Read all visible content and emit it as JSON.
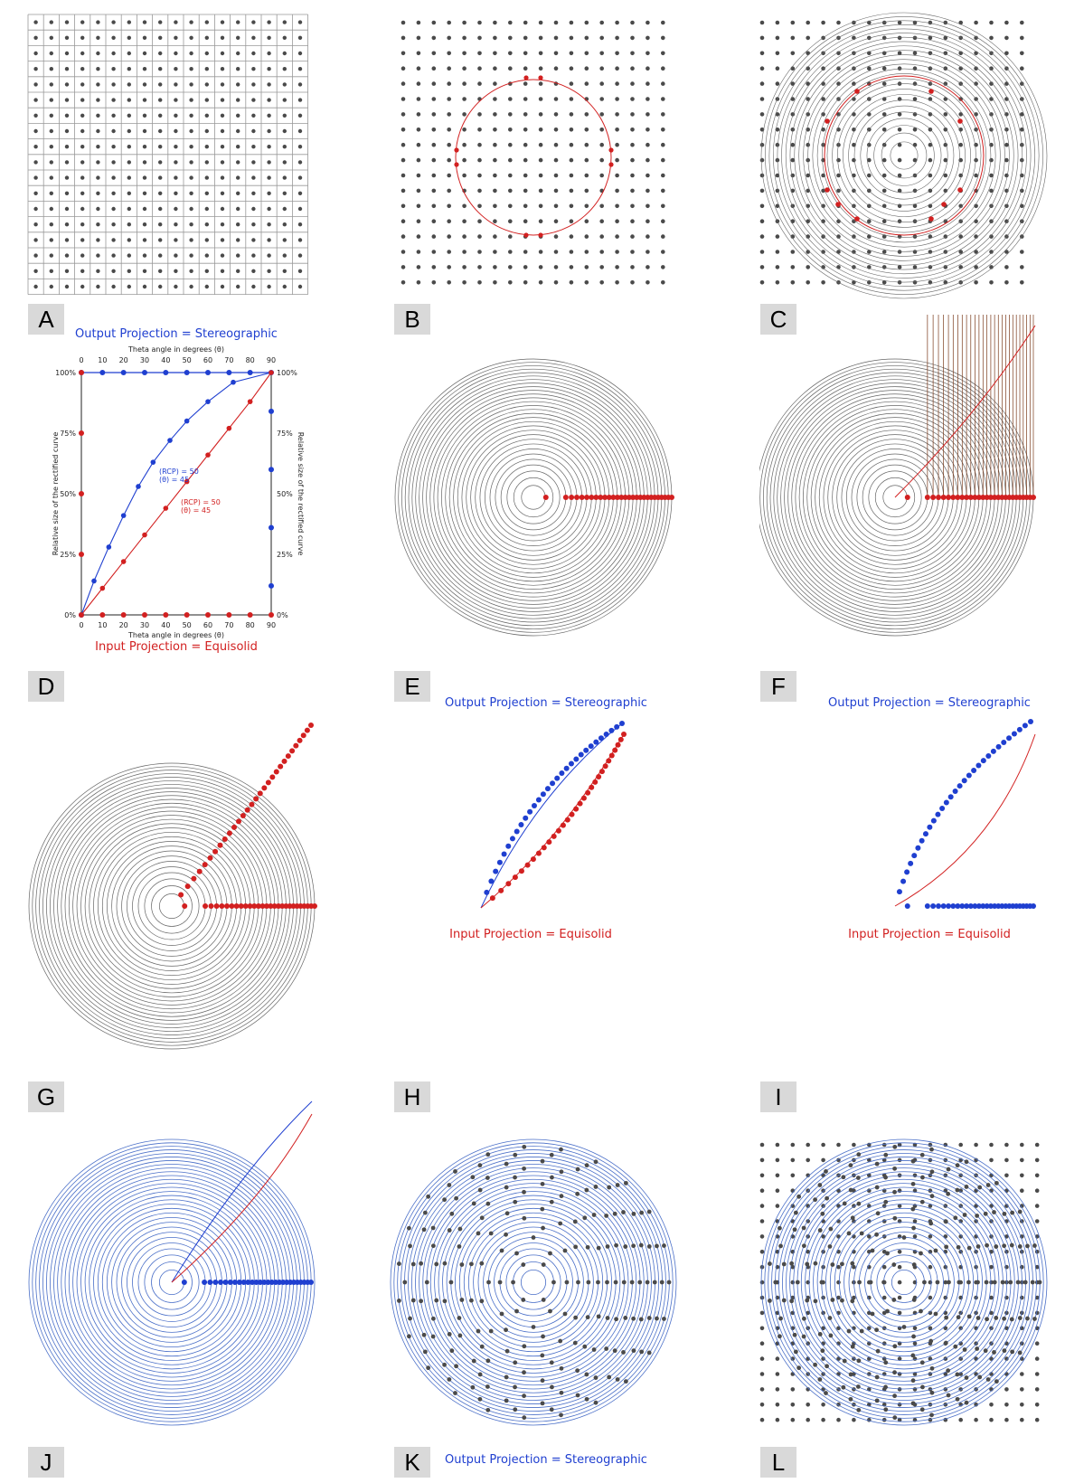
{
  "panels": {
    "A": "A",
    "B": "B",
    "C": "C",
    "D": "D",
    "E": "E",
    "F": "F",
    "G": "G",
    "H": "H",
    "I": "I",
    "J": "J",
    "K": "K",
    "L": "L"
  },
  "titles": {
    "output": "Output Projection = Stereographic",
    "input": "Input Projection = Equisolid"
  },
  "chart_data": {
    "type": "line",
    "x_axis_label": "Theta angle in degrees (θ)",
    "y_axis_label": "Relative size of the rectified curve",
    "x_ticks": [
      "0",
      "10",
      "20",
      "30",
      "40",
      "50",
      "60",
      "70",
      "80",
      "90"
    ],
    "y_ticks": [
      "0%",
      "25%",
      "50%",
      "75%",
      "100%"
    ],
    "xlim": [
      0,
      90
    ],
    "ylim": [
      0,
      100
    ],
    "series": [
      {
        "name": "Output Projection = Stereographic",
        "color": "#1f3fd0",
        "x": [
          0,
          6,
          13,
          20,
          27,
          34,
          42,
          50,
          60,
          72,
          90
        ],
        "y": [
          0,
          14,
          28,
          41,
          53,
          63,
          72,
          80,
          88,
          96,
          100
        ]
      },
      {
        "name": "Input Projection = Equisolid",
        "color": "#d22020",
        "x": [
          0,
          10,
          20,
          30,
          40,
          50,
          60,
          70,
          80,
          90
        ],
        "y": [
          0,
          11,
          22,
          33,
          44,
          55,
          66,
          77,
          88,
          100
        ]
      }
    ],
    "annotations": [
      {
        "color": "#1f3fd0",
        "line1": "(RCP) = 50",
        "line2": "(θ) = 45"
      },
      {
        "color": "#d22020",
        "line1": "(RCP) = 50",
        "line2": "(θ) = 45"
      }
    ]
  },
  "colors": {
    "dot": "#4a4a4a",
    "grid": "#999999",
    "ring": "#666666",
    "red": "#d22020",
    "blue": "#1f3fd0",
    "brown": "#7a3a1a",
    "ring_blue": "#4a6fc8",
    "label_bg": "#d9d9d9"
  }
}
